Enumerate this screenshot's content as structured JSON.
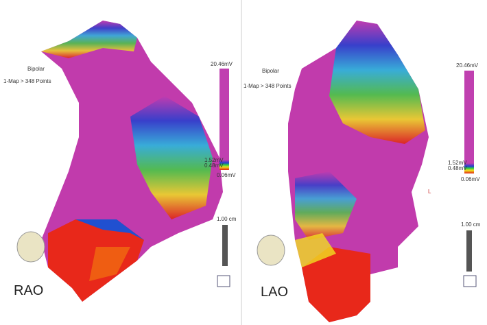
{
  "panels": [
    {
      "view": "RAO",
      "map_type": "Bipolar",
      "map_label": "1-Map > 348 Points",
      "scale": {
        "max": "20.46mV",
        "upper": "1.52mV",
        "lower": "0.48mV",
        "min": "0.06mV"
      },
      "ruler": "1.00 cm"
    },
    {
      "view": "LAO",
      "map_type": "Bipolar",
      "map_label": "1-Map > 348 Points",
      "scale": {
        "max": "20.46mV",
        "upper": "1.52mV",
        "lower": "0.48mV",
        "min": "0.06mV"
      },
      "ruler": "1.00 cm",
      "orientation_label": "L"
    }
  ]
}
